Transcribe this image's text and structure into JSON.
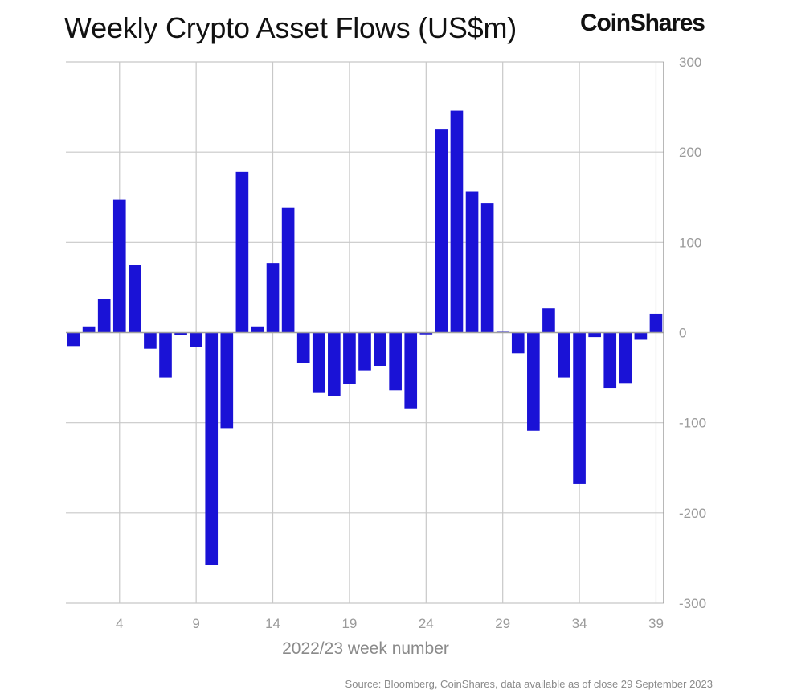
{
  "title": "Weekly Crypto Asset Flows (US$m)",
  "brand": "CoinShares",
  "source": "Source: Bloomberg, CoinShares, data available as of close 29 September 2023",
  "colors": {
    "bar": "#1a12d6",
    "grid": "#c8c8c8",
    "axis": "#a0a0a0"
  },
  "chart_data": {
    "type": "bar",
    "title": "Weekly Crypto Asset Flows (US$m)",
    "xlabel": "2022/23 week number",
    "ylabel": "",
    "ylim": [
      -300,
      300
    ],
    "yticks": [
      300,
      200,
      100,
      0,
      -100,
      -200,
      -300
    ],
    "xtick_labels": [
      "4",
      "9",
      "14",
      "19",
      "24",
      "29",
      "34",
      "39"
    ],
    "xtick_weeks": [
      4,
      9,
      14,
      19,
      24,
      29,
      34,
      39
    ],
    "categories": [
      1,
      2,
      3,
      4,
      5,
      6,
      7,
      8,
      9,
      10,
      11,
      12,
      13,
      14,
      15,
      16,
      17,
      18,
      19,
      20,
      21,
      22,
      23,
      24,
      25,
      26,
      27,
      28,
      29,
      30,
      31,
      32,
      33,
      34,
      35,
      36,
      37,
      38,
      39
    ],
    "values": [
      -15,
      6,
      37,
      147,
      75,
      -18,
      -50,
      -3,
      -16,
      -258,
      -106,
      178,
      6,
      77,
      138,
      -34,
      -67,
      -70,
      -57,
      -42,
      -37,
      -64,
      -84,
      -2,
      225,
      246,
      156,
      143,
      1,
      -23,
      -109,
      27,
      -50,
      -168,
      -5,
      -62,
      -56,
      -8,
      21
    ]
  }
}
